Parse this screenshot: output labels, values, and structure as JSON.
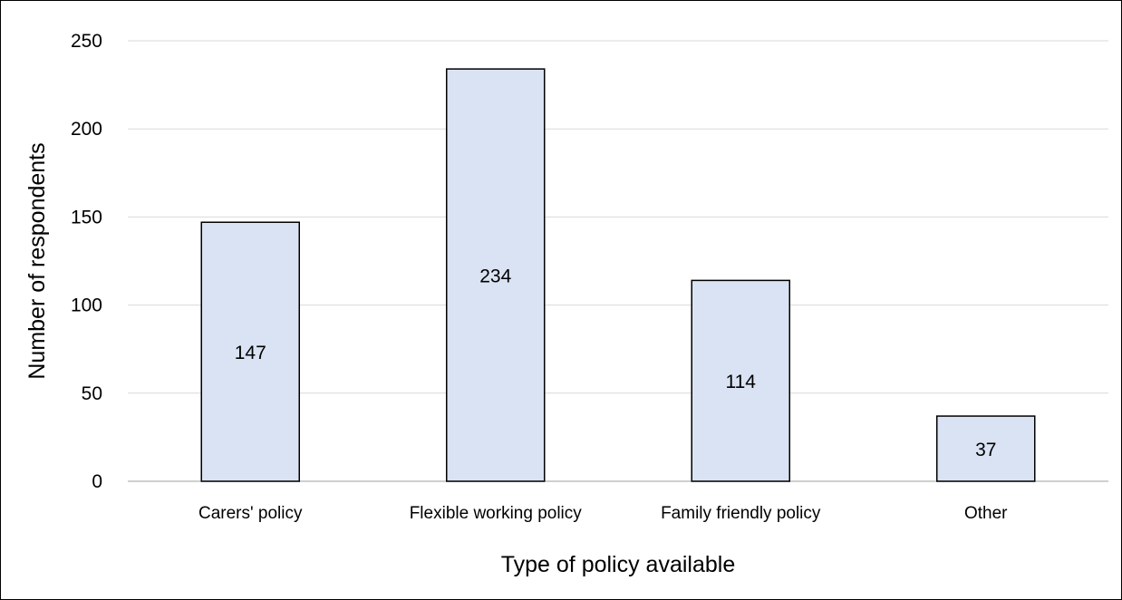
{
  "chart_data": {
    "type": "bar",
    "title": "",
    "xlabel": "Type of policy available",
    "ylabel": "Number of respondents",
    "categories": [
      "Carers' policy",
      "Flexible working policy",
      "Family friendly policy",
      "Other"
    ],
    "values": [
      147,
      234,
      114,
      37
    ],
    "ylim": [
      0,
      250
    ],
    "yticks": [
      0,
      50,
      100,
      150,
      200,
      250
    ],
    "grid": "horizontal",
    "legend": "none",
    "data_labels": true,
    "colors": {
      "bar_fill": "#dae3f3",
      "bar_stroke": "#000000",
      "grid": "#d9d9d9",
      "axis": "#bfbfbf"
    }
  }
}
